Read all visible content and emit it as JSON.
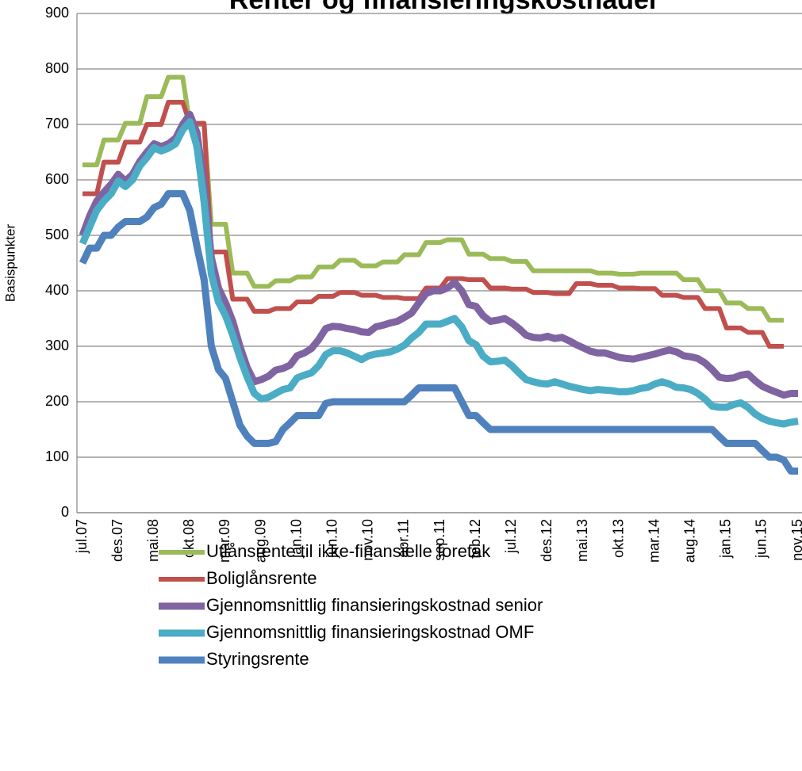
{
  "chart_data": {
    "type": "line",
    "title": "Renter og finansieringskostnader",
    "ylabel": "Basispunkter",
    "categories": [
      "jul.07",
      null,
      null,
      null,
      null,
      "des.07",
      null,
      null,
      null,
      null,
      "mai.08",
      null,
      null,
      null,
      null,
      "okt.08",
      null,
      null,
      null,
      null,
      "mar.09",
      null,
      null,
      null,
      null,
      "aug.09",
      null,
      null,
      null,
      null,
      "jan.10",
      null,
      null,
      null,
      null,
      "jun.10",
      null,
      null,
      null,
      null,
      "nov.10",
      null,
      null,
      null,
      null,
      "apr.11",
      null,
      null,
      null,
      null,
      "sep.11",
      null,
      null,
      null,
      null,
      "feb.12",
      null,
      null,
      null,
      null,
      "jul.12",
      null,
      null,
      null,
      null,
      "des.12",
      null,
      null,
      null,
      null,
      "mai.13",
      null,
      null,
      null,
      null,
      "okt.13",
      null,
      null,
      null,
      null,
      "mar.14",
      null,
      null,
      null,
      null,
      "aug.14",
      null,
      null,
      null,
      null,
      "jan.15",
      null,
      null,
      null,
      null,
      "jun.15",
      null,
      null,
      null,
      null,
      "nov.15"
    ],
    "series": [
      {
        "name": "Utlånsrente til ikke-finansielle foretak",
        "color": "#9BBB59",
        "values": [
          627,
          627,
          627,
          672,
          672,
          672,
          702,
          702,
          702,
          750,
          750,
          750,
          785,
          785,
          785,
          700,
          700,
          700,
          520,
          520,
          520,
          432,
          432,
          432,
          408,
          408,
          408,
          418,
          418,
          418,
          425,
          425,
          425,
          443,
          443,
          443,
          455,
          455,
          455,
          445,
          445,
          445,
          452,
          452,
          452,
          465,
          465,
          465,
          487,
          487,
          487,
          492,
          492,
          492,
          466,
          466,
          466,
          458,
          458,
          458,
          453,
          453,
          453,
          436,
          436,
          436,
          436,
          436,
          436,
          436,
          436,
          436,
          432,
          432,
          432,
          430,
          430,
          430,
          432,
          432,
          432,
          432,
          432,
          432,
          420,
          420,
          420,
          400,
          400,
          400,
          378,
          378,
          378,
          368,
          368,
          368,
          347,
          347,
          347,
          null,
          null
        ]
      },
      {
        "name": "Boliglånsrente",
        "color": "#C0504D",
        "values": [
          575,
          575,
          575,
          632,
          632,
          632,
          668,
          668,
          668,
          700,
          700,
          700,
          740,
          740,
          740,
          702,
          702,
          702,
          470,
          470,
          470,
          385,
          385,
          385,
          363,
          363,
          363,
          368,
          368,
          368,
          380,
          380,
          380,
          390,
          390,
          390,
          397,
          397,
          397,
          392,
          392,
          392,
          388,
          388,
          388,
          386,
          386,
          386,
          405,
          405,
          405,
          422,
          422,
          422,
          420,
          420,
          420,
          405,
          405,
          405,
          403,
          403,
          403,
          397,
          397,
          397,
          395,
          395,
          395,
          413,
          413,
          413,
          410,
          410,
          410,
          405,
          405,
          405,
          404,
          404,
          404,
          392,
          392,
          392,
          388,
          388,
          388,
          368,
          368,
          368,
          333,
          333,
          333,
          325,
          325,
          325,
          300,
          300,
          300,
          null,
          null
        ]
      },
      {
        "name": "Gjennomsnittlig finansieringskostnad senior",
        "color": "#8064A2",
        "values": [
          500,
          535,
          562,
          578,
          592,
          610,
          598,
          610,
          633,
          650,
          665,
          660,
          665,
          675,
          700,
          718,
          685,
          590,
          460,
          405,
          378,
          345,
          300,
          262,
          236,
          240,
          246,
          257,
          260,
          266,
          283,
          288,
          296,
          312,
          332,
          336,
          335,
          332,
          330,
          326,
          325,
          335,
          338,
          342,
          345,
          352,
          360,
          378,
          395,
          400,
          400,
          405,
          415,
          400,
          375,
          372,
          355,
          345,
          347,
          350,
          342,
          332,
          320,
          316,
          315,
          318,
          314,
          316,
          310,
          303,
          297,
          291,
          288,
          288,
          284,
          280,
          278,
          277,
          280,
          283,
          286,
          290,
          293,
          290,
          283,
          281,
          278,
          270,
          258,
          244,
          242,
          243,
          248,
          250,
          238,
          228,
          222,
          217,
          212,
          215,
          215
        ]
      },
      {
        "name": "Gjennomsnittlig finansieringskostnad OMF",
        "color": "#4BACC6",
        "values": [
          485,
          515,
          545,
          562,
          575,
          598,
          588,
          600,
          625,
          640,
          658,
          652,
          657,
          665,
          690,
          705,
          660,
          560,
          430,
          380,
          355,
          320,
          280,
          245,
          215,
          205,
          208,
          215,
          222,
          225,
          243,
          248,
          252,
          265,
          285,
          292,
          292,
          288,
          282,
          276,
          283,
          286,
          288,
          290,
          295,
          302,
          315,
          325,
          340,
          340,
          340,
          345,
          350,
          335,
          310,
          303,
          282,
          272,
          273,
          275,
          265,
          252,
          240,
          236,
          233,
          232,
          236,
          232,
          228,
          225,
          222,
          220,
          222,
          221,
          220,
          218,
          218,
          220,
          224,
          226,
          232,
          236,
          232,
          226,
          225,
          222,
          215,
          205,
          192,
          190,
          190,
          195,
          198,
          190,
          178,
          170,
          165,
          162,
          160,
          163,
          165
        ]
      },
      {
        "name": "Styringsrente",
        "color": "#4F81BD",
        "values": [
          450,
          477,
          477,
          500,
          500,
          515,
          525,
          525,
          525,
          533,
          550,
          556,
          575,
          575,
          575,
          545,
          480,
          420,
          300,
          258,
          242,
          200,
          158,
          138,
          125,
          125,
          125,
          128,
          150,
          162,
          175,
          175,
          175,
          175,
          197,
          200,
          200,
          200,
          200,
          200,
          200,
          200,
          200,
          200,
          200,
          200,
          212,
          225,
          225,
          225,
          225,
          225,
          225,
          200,
          175,
          175,
          162,
          150,
          150,
          150,
          150,
          150,
          150,
          150,
          150,
          150,
          150,
          150,
          150,
          150,
          150,
          150,
          150,
          150,
          150,
          150,
          150,
          150,
          150,
          150,
          150,
          150,
          150,
          150,
          150,
          150,
          150,
          150,
          150,
          137,
          125,
          125,
          125,
          125,
          125,
          112,
          100,
          100,
          95,
          75,
          75
        ]
      }
    ],
    "ylim": [
      0,
      900
    ],
    "yticks": [
      0,
      100,
      200,
      300,
      400,
      500,
      600,
      700,
      800,
      900
    ],
    "grid": true
  }
}
